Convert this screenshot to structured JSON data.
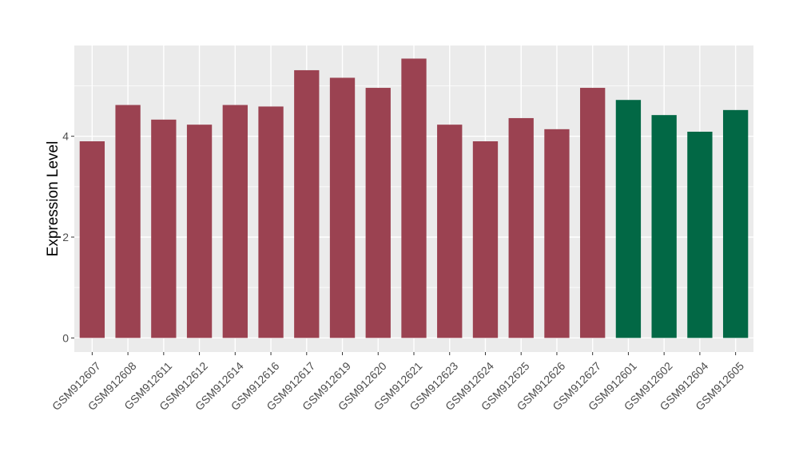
{
  "chart_data": {
    "type": "bar",
    "title": "",
    "xlabel": "",
    "ylabel": "Expression Level",
    "ylim": [
      -0.28,
      5.8
    ],
    "yticks": [
      0,
      2,
      4
    ],
    "grid": true,
    "legend": "none",
    "colors": {
      "group_a": "#9b4251",
      "group_b": "#026845",
      "panel": "#ebebeb",
      "grid": "#ffffff"
    },
    "categories": [
      "GSM912607",
      "GSM912608",
      "GSM912611",
      "GSM912612",
      "GSM912614",
      "GSM912616",
      "GSM912617",
      "GSM912619",
      "GSM912620",
      "GSM912621",
      "GSM912623",
      "GSM912624",
      "GSM912625",
      "GSM912626",
      "GSM912627",
      "GSM912601",
      "GSM912602",
      "GSM912604",
      "GSM912605"
    ],
    "values": [
      3.9,
      4.62,
      4.33,
      4.23,
      4.62,
      4.59,
      5.31,
      5.16,
      4.96,
      5.54,
      4.23,
      3.9,
      4.36,
      4.14,
      4.96,
      4.72,
      4.42,
      4.09,
      4.52
    ],
    "groups": [
      "a",
      "a",
      "a",
      "a",
      "a",
      "a",
      "a",
      "a",
      "a",
      "a",
      "a",
      "a",
      "a",
      "a",
      "a",
      "b",
      "b",
      "b",
      "b"
    ]
  }
}
